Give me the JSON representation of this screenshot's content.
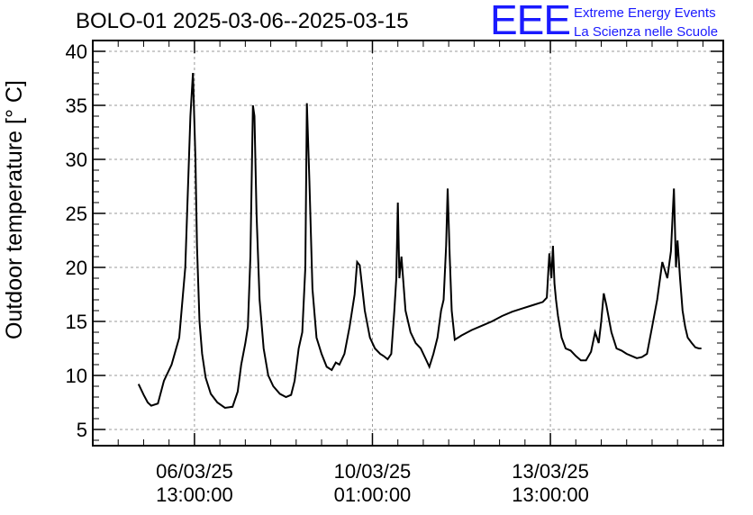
{
  "chart_data": {
    "type": "line",
    "title": "BOLO-01 2025-03-06--2025-03-15",
    "ylabel": "Outdoor temperature [° C]",
    "xlabel": "",
    "ylim": [
      3.5,
      41
    ],
    "yticks": [
      5,
      10,
      15,
      20,
      25,
      30,
      35,
      40
    ],
    "xlim_days": [
      0,
      12.4
    ],
    "xticks": [
      {
        "t": 2.0,
        "date": "06/03/25",
        "time": "13:00:00"
      },
      {
        "t": 5.5,
        "date": "10/03/25",
        "time": "01:00:00"
      },
      {
        "t": 9.0,
        "date": "13/03/25",
        "time": "13:00:00"
      }
    ],
    "grid": true,
    "series": [
      {
        "name": "",
        "color": "#000000",
        "x": [
          0.9,
          1.0,
          1.08,
          1.15,
          1.28,
          1.4,
          1.55,
          1.7,
          1.82,
          1.92,
          1.97,
          2.02,
          2.05,
          2.1,
          2.15,
          2.22,
          2.32,
          2.45,
          2.6,
          2.75,
          2.85,
          2.92,
          3.0,
          3.05,
          3.1,
          3.15,
          3.18,
          3.22,
          3.28,
          3.36,
          3.45,
          3.55,
          3.68,
          3.8,
          3.9,
          3.97,
          4.05,
          4.12,
          4.18,
          4.21,
          4.26,
          4.32,
          4.4,
          4.5,
          4.6,
          4.7,
          4.78,
          4.85,
          4.95,
          5.05,
          5.15,
          5.2,
          5.25,
          5.35,
          5.45,
          5.55,
          5.65,
          5.72,
          5.8,
          5.87,
          5.93,
          5.97,
          6.0,
          6.03,
          6.07,
          6.15,
          6.25,
          6.35,
          6.45,
          6.55,
          6.62,
          6.7,
          6.78,
          6.85,
          6.9,
          6.95,
          6.98,
          7.02,
          7.06,
          7.12,
          7.25,
          7.45,
          7.65,
          7.85,
          8.05,
          8.25,
          8.45,
          8.65,
          8.85,
          8.93,
          8.98,
          9.02,
          9.05,
          9.08,
          9.11,
          9.15,
          9.22,
          9.3,
          9.4,
          9.5,
          9.6,
          9.7,
          9.8,
          9.88,
          9.95,
          10.0,
          10.05,
          10.1,
          10.2,
          10.3,
          10.4,
          10.5,
          10.6,
          10.7,
          10.8,
          10.9,
          11.0,
          11.1,
          11.2,
          11.3,
          11.37,
          11.43,
          11.47,
          11.5,
          11.55,
          11.6,
          11.65,
          11.7,
          11.78,
          11.85,
          11.92,
          11.97
        ],
        "y": [
          9.2,
          8.2,
          7.5,
          7.2,
          7.4,
          9.5,
          11.0,
          13.5,
          20.0,
          34.0,
          38.0,
          30.0,
          22.0,
          15.0,
          12.0,
          9.8,
          8.3,
          7.5,
          7.0,
          7.1,
          8.5,
          11.0,
          13.0,
          14.5,
          21.0,
          35.0,
          34.0,
          25.0,
          17.0,
          12.5,
          10.0,
          9.0,
          8.3,
          8.0,
          8.2,
          9.5,
          12.5,
          14.0,
          20.0,
          35.2,
          28.0,
          18.0,
          13.5,
          12.0,
          10.8,
          10.5,
          11.2,
          11.0,
          12.0,
          14.5,
          17.5,
          20.5,
          20.2,
          16.0,
          13.5,
          12.5,
          12.0,
          11.8,
          11.5,
          12.0,
          16.0,
          19.0,
          26.0,
          19.0,
          21.0,
          16.0,
          14.0,
          13.0,
          12.5,
          11.5,
          10.8,
          12.0,
          13.5,
          16.0,
          17.0,
          22.0,
          27.3,
          21.0,
          16.0,
          13.3,
          13.7,
          14.2,
          14.6,
          15.0,
          15.5,
          15.9,
          16.2,
          16.5,
          16.8,
          17.2,
          21.3,
          19.0,
          22.0,
          18.5,
          17.0,
          15.5,
          13.5,
          12.5,
          12.3,
          11.8,
          11.4,
          11.4,
          12.2,
          14.0,
          13.0,
          15.0,
          17.6,
          16.5,
          14.0,
          12.5,
          12.3,
          12.0,
          11.8,
          11.6,
          11.7,
          12.0,
          14.5,
          17.0,
          20.5,
          19.0,
          21.5,
          27.3,
          20.0,
          22.5,
          19.0,
          16.0,
          14.5,
          13.5,
          13.0,
          12.6,
          12.5,
          12.5
        ]
      }
    ]
  },
  "logo": {
    "mark": "EEE",
    "line1": "Extreme Energy Events",
    "line2": "La Scienza nelle Scuole",
    "color": "#1a1aff"
  }
}
